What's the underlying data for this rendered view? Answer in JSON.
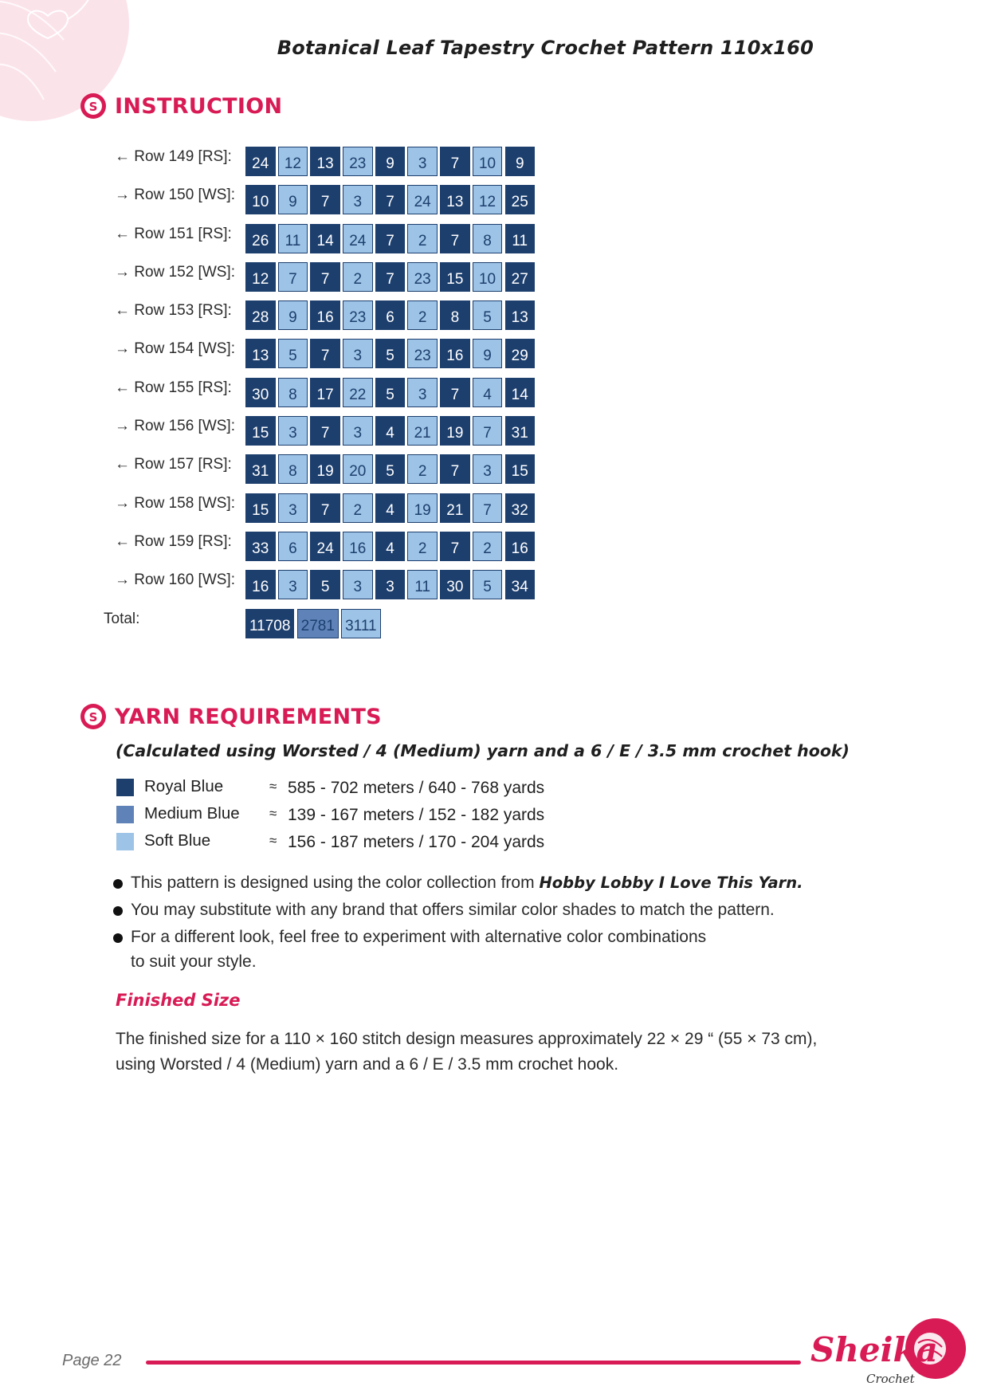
{
  "header": {
    "title": "Botanical Leaf Tapestry Crochet Pattern 110x160"
  },
  "instruction": {
    "heading": "INSTRUCTION",
    "rows": [
      {
        "label": "← Row 149 [RS]:",
        "cells": [
          24,
          12,
          13,
          23,
          9,
          3,
          7,
          10,
          9
        ]
      },
      {
        "label": "→ Row 150 [WS]:",
        "cells": [
          10,
          9,
          7,
          3,
          7,
          24,
          13,
          12,
          25
        ]
      },
      {
        "label": "← Row 151 [RS]:",
        "cells": [
          26,
          11,
          14,
          24,
          7,
          2,
          7,
          8,
          11
        ]
      },
      {
        "label": "→ Row 152 [WS]:",
        "cells": [
          12,
          7,
          7,
          2,
          7,
          23,
          15,
          10,
          27
        ]
      },
      {
        "label": "← Row 153 [RS]:",
        "cells": [
          28,
          9,
          16,
          23,
          6,
          2,
          8,
          5,
          13
        ]
      },
      {
        "label": "→ Row 154 [WS]:",
        "cells": [
          13,
          5,
          7,
          3,
          5,
          23,
          16,
          9,
          29
        ]
      },
      {
        "label": "← Row 155 [RS]:",
        "cells": [
          30,
          8,
          17,
          22,
          5,
          3,
          7,
          4,
          14
        ]
      },
      {
        "label": "→ Row 156 [WS]:",
        "cells": [
          15,
          3,
          7,
          3,
          4,
          21,
          19,
          7,
          31
        ]
      },
      {
        "label": "← Row 157 [RS]:",
        "cells": [
          31,
          8,
          19,
          20,
          5,
          2,
          7,
          3,
          15
        ]
      },
      {
        "label": "→ Row 158 [WS]:",
        "cells": [
          15,
          3,
          7,
          2,
          4,
          19,
          21,
          7,
          32
        ]
      },
      {
        "label": "← Row 159 [RS]:",
        "cells": [
          33,
          6,
          24,
          16,
          4,
          2,
          7,
          2,
          16
        ]
      },
      {
        "label": "→ Row 160 [WS]:",
        "cells": [
          16,
          3,
          5,
          3,
          3,
          11,
          30,
          5,
          34
        ]
      }
    ],
    "cell_colors": [
      "dark",
      "light",
      "dark",
      "light",
      "dark",
      "light",
      "dark",
      "light",
      "dark"
    ],
    "total": {
      "label": "Total:",
      "values": [
        "11708",
        "2781",
        "3111"
      ],
      "colors": [
        "dark",
        "medium",
        "light"
      ]
    }
  },
  "yarn": {
    "heading": "YARN REQUIREMENTS",
    "subtitle": "(Calculated using Worsted / 4 (Medium) yarn and a 6 / E / 3.5 mm crochet hook)",
    "approx_symbol": "≈",
    "items": [
      {
        "name": "Royal Blue",
        "color": "#1d3f6e",
        "amount": "585 - 702 meters / 640 - 768 yards"
      },
      {
        "name": "Medium Blue",
        "color": "#5f83b9",
        "amount": "139 - 167 meters / 152 - 182 yards"
      },
      {
        "name": "Soft Blue",
        "color": "#9dc3e6",
        "amount": "156 - 187 meters / 170 - 204 yards"
      }
    ],
    "bullets": {
      "b1_text": "This pattern is designed using the color collection from ",
      "b1_bold": "Hobby Lobby I Love This Yarn.",
      "b2_text": "You may substitute with any brand that offers similar color shades to match the pattern.",
      "b3_line1": "For a different look, feel free to experiment with alternative color combinations",
      "b3_line2": "to suit your style."
    }
  },
  "finished_size": {
    "heading": "Finished Size",
    "line1": "The finished size for a 110 × 160 stitch design measures approximately 22 × 29 “ (55 × 73 cm),",
    "line2": "using Worsted / 4 (Medium) yarn and a 6 / E / 3.5 mm crochet hook."
  },
  "footer": {
    "page_label": "Page 22",
    "accent_color": "#d81b55",
    "logo_text": "Sheika",
    "logo_sub": "Crochet"
  },
  "colors": {
    "royal_blue": "#1d3f6e",
    "medium_blue": "#5f83b9",
    "soft_blue": "#9dc3e6",
    "accent": "#d81b55"
  }
}
